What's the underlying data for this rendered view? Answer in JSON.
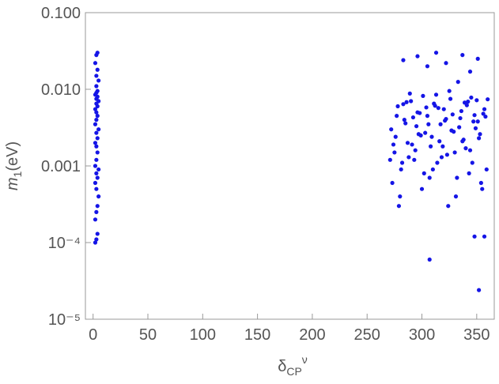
{
  "chart_data": {
    "type": "scatter",
    "x_label": {
      "base": "δ",
      "sub": "CP",
      "sup": "ν"
    },
    "y_label": {
      "base": "m",
      "sub": "1",
      "rest": "(eV)"
    },
    "log_y": true,
    "color": "#1515e6",
    "xlim": [
      -7,
      366
    ],
    "ylim": [
      1e-05,
      0.1
    ],
    "xticks": [
      0,
      50,
      100,
      150,
      200,
      250,
      300,
      350
    ],
    "yticks": [
      {
        "value": 0.1,
        "label": "0.100"
      },
      {
        "value": 0.01,
        "label": "0.010"
      },
      {
        "value": 0.001,
        "label": "0.001"
      },
      {
        "value": 0.0001,
        "label": "10⁻⁴"
      },
      {
        "value": 1e-05,
        "label": "10⁻⁵"
      }
    ],
    "series": [
      {
        "name": "points",
        "color": "#1515e6",
        "x": [
          2,
          3,
          4,
          2,
          3,
          4,
          5,
          3,
          2,
          4,
          3,
          5,
          2,
          3,
          4,
          3,
          2,
          4,
          3,
          5,
          2,
          3,
          4,
          3,
          2,
          4,
          3,
          5,
          3,
          4,
          2,
          3,
          4,
          3,
          5,
          3,
          4,
          2,
          3,
          4,
          272,
          275,
          278,
          281,
          284,
          287,
          290,
          293,
          296,
          299,
          302,
          305,
          308,
          311,
          314,
          317,
          320,
          323,
          326,
          329,
          332,
          335,
          338,
          341,
          344,
          347,
          350,
          353,
          356,
          359,
          273,
          277,
          282,
          286,
          291,
          295,
          300,
          304,
          309,
          313,
          318,
          322,
          327,
          331,
          336,
          340,
          345,
          349,
          354,
          358,
          271,
          276,
          280,
          285,
          289,
          294,
          298,
          303,
          307,
          312,
          316,
          321,
          325,
          330,
          334,
          339,
          343,
          348,
          352,
          357,
          274,
          279,
          283,
          288,
          292,
          297,
          301,
          306,
          310,
          315,
          319,
          324,
          328,
          333,
          337,
          342,
          346,
          351,
          355,
          360,
          283,
          296,
          305,
          313,
          322,
          337,
          344,
          351,
          307,
          352,
          348,
          357
        ],
        "y": [
          0.0001,
          0.00011,
          0.00013,
          0.0002,
          0.00025,
          0.0003,
          0.0004,
          0.0005,
          0.0006,
          0.0007,
          0.0008,
          0.0009,
          0.001,
          0.0012,
          0.0015,
          0.0018,
          0.002,
          0.0023,
          0.0027,
          0.003,
          0.0035,
          0.004,
          0.0045,
          0.005,
          0.0055,
          0.006,
          0.0065,
          0.007,
          0.0075,
          0.008,
          0.0085,
          0.009,
          0.0095,
          0.011,
          0.013,
          0.015,
          0.018,
          0.022,
          0.028,
          0.03,
          0.003,
          0.0015,
          0.006,
          0.0009,
          0.004,
          0.002,
          0.007,
          0.0012,
          0.005,
          0.0025,
          0.0008,
          0.0045,
          0.0018,
          0.0065,
          0.0011,
          0.0035,
          0.0055,
          0.0014,
          0.0075,
          0.0028,
          0.0007,
          0.0042,
          0.0022,
          0.0062,
          0.0016,
          0.0038,
          0.0072,
          0.0026,
          0.0048,
          0.0009,
          0.0006,
          0.0045,
          0.0011,
          0.0068,
          0.0019,
          0.0033,
          0.0005,
          0.0058,
          0.0024,
          0.0085,
          0.0013,
          0.0041,
          0.0029,
          0.0004,
          0.0052,
          0.0017,
          0.0078,
          0.0031,
          0.0006,
          0.0044,
          0.0012,
          0.0024,
          0.0004,
          0.0036,
          0.0088,
          0.0016,
          0.0049,
          0.0027,
          0.0007,
          0.0061,
          0.0021,
          0.0039,
          0.0095,
          0.0015,
          0.0032,
          0.0067,
          0.0008,
          0.0046,
          0.0023,
          0.0055,
          0.0019,
          0.0003,
          0.0064,
          0.0013,
          0.0043,
          0.0026,
          0.0082,
          0.0035,
          0.0009,
          0.0057,
          0.0018,
          0.0003,
          0.0047,
          0.0125,
          0.0021,
          0.0069,
          0.0011,
          0.0038,
          0.0005,
          0.0074,
          0.024,
          0.027,
          0.02,
          0.03,
          0.022,
          0.028,
          0.017,
          0.025,
          6e-05,
          2.4e-05,
          0.00012,
          0.00012
        ]
      }
    ]
  }
}
